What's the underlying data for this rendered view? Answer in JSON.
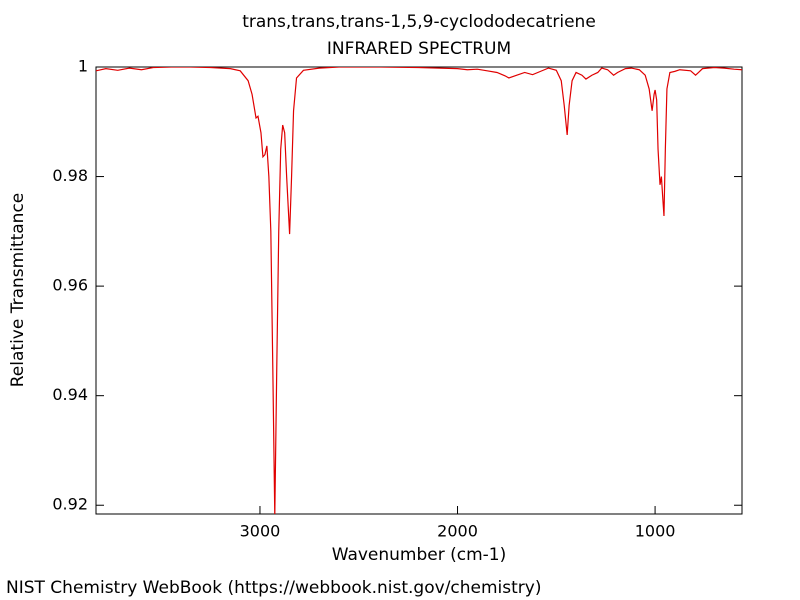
{
  "chart_data": {
    "type": "line",
    "title": "trans,trans,trans-1,5,9-cyclododecatriene",
    "subtitle": "INFRARED SPECTRUM",
    "x_label": "Wavenumber (cm-1)",
    "y_label": "Relative Transmittance",
    "source": "NIST Chemistry WebBook (https://webbook.nist.gov/chemistry)",
    "color": "#e00000",
    "xlim": [
      3830,
      560
    ],
    "ylim": [
      0.9184,
      1
    ],
    "xticks": [
      3000,
      2000,
      1000
    ],
    "yticks": [
      0.92,
      0.94,
      0.96,
      0.98,
      1
    ],
    "x": [
      3830,
      3780,
      3720,
      3660,
      3600,
      3540,
      3450,
      3350,
      3250,
      3150,
      3100,
      3060,
      3040,
      3020,
      3010,
      2995,
      2985,
      2975,
      2965,
      2955,
      2945,
      2935,
      2925,
      2915,
      2905,
      2895,
      2885,
      2875,
      2865,
      2850,
      2840,
      2830,
      2815,
      2780,
      2700,
      2600,
      2400,
      2200,
      2000,
      1950,
      1900,
      1850,
      1800,
      1760,
      1740,
      1700,
      1660,
      1620,
      1580,
      1540,
      1500,
      1475,
      1460,
      1445,
      1435,
      1420,
      1400,
      1370,
      1350,
      1320,
      1290,
      1270,
      1240,
      1210,
      1190,
      1150,
      1120,
      1080,
      1050,
      1030,
      1015,
      1005,
      1000,
      992,
      985,
      975,
      968,
      962,
      955,
      948,
      940,
      925,
      900,
      875,
      820,
      795,
      780,
      760,
      700,
      650,
      600,
      560
    ],
    "values": [
      0.9993,
      0.9997,
      0.9994,
      0.9998,
      0.9995,
      0.9999,
      1.0,
      1.0,
      0.9999,
      0.9997,
      0.9993,
      0.9975,
      0.995,
      0.9907,
      0.991,
      0.988,
      0.9836,
      0.984,
      0.9856,
      0.98,
      0.97,
      0.945,
      0.918,
      0.945,
      0.97,
      0.985,
      0.9894,
      0.988,
      0.98,
      0.9695,
      0.98,
      0.992,
      0.998,
      0.9994,
      0.9998,
      1.0,
      1.0,
      0.9999,
      0.9997,
      0.9995,
      0.9996,
      0.9993,
      0.999,
      0.9984,
      0.998,
      0.9985,
      0.999,
      0.9986,
      0.9992,
      0.9998,
      0.9994,
      0.9975,
      0.993,
      0.9876,
      0.993,
      0.9975,
      0.999,
      0.9985,
      0.9978,
      0.9985,
      0.999,
      0.9998,
      0.9995,
      0.9985,
      0.999,
      0.9997,
      0.9998,
      0.9995,
      0.9985,
      0.996,
      0.992,
      0.995,
      0.9958,
      0.994,
      0.985,
      0.9785,
      0.98,
      0.9766,
      0.9728,
      0.985,
      0.996,
      0.999,
      0.9992,
      0.9995,
      0.9993,
      0.9985,
      0.999,
      0.9997,
      0.9999,
      0.9998,
      0.9996,
      0.9995
    ]
  }
}
